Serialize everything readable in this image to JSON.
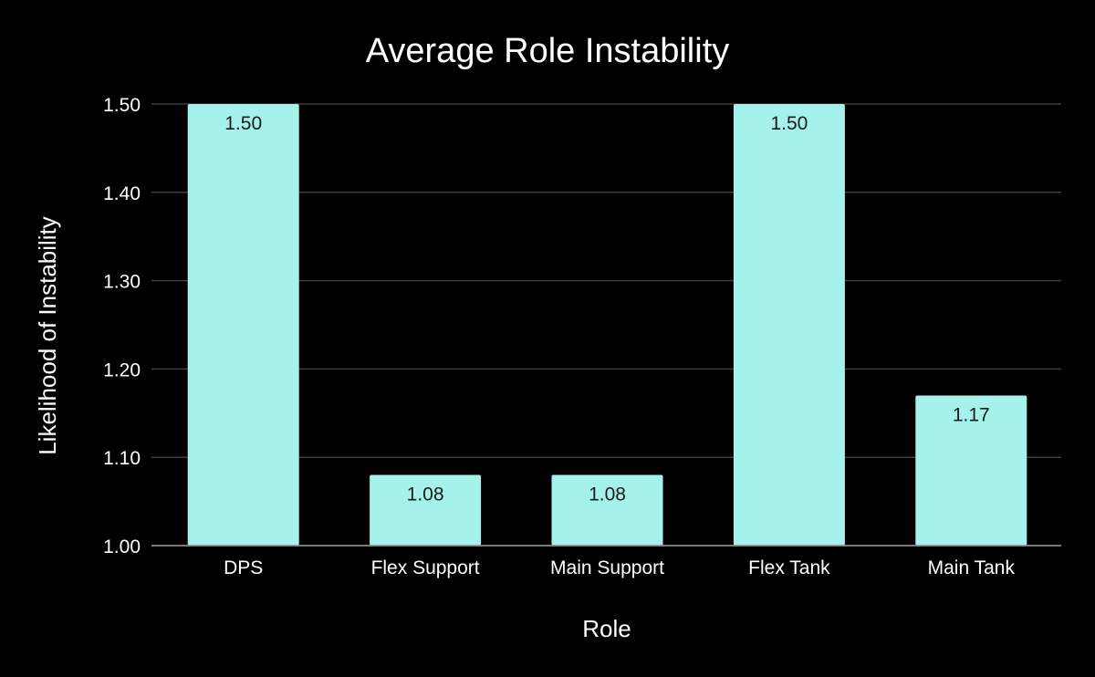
{
  "chart_data": {
    "type": "bar",
    "title": "Average Role Instability",
    "xlabel": "Role",
    "ylabel": "Likelihood of Instability",
    "categories": [
      "DPS",
      "Flex Support",
      "Main Support",
      "Flex Tank",
      "Main Tank"
    ],
    "values": [
      1.5,
      1.08,
      1.08,
      1.5,
      1.17
    ],
    "data_labels": [
      "1.50",
      "1.08",
      "1.08",
      "1.50",
      "1.17"
    ],
    "ylim": [
      1.0,
      1.5
    ],
    "yticks": [
      1.0,
      1.1,
      1.2,
      1.3,
      1.4,
      1.5
    ],
    "ytick_labels": [
      "1.00",
      "1.10",
      "1.20",
      "1.30",
      "1.40",
      "1.50"
    ],
    "grid": true,
    "legend": "none",
    "colors": {
      "background": "#000000",
      "bar": "#a5f2ea",
      "text": "#ffffff",
      "data_label_text": "#1a1a1a",
      "gridline": "#3c3c3c"
    }
  }
}
